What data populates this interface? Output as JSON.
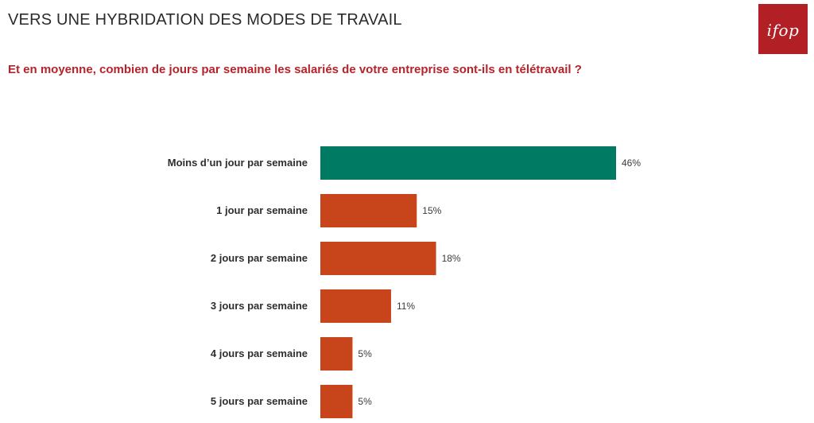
{
  "header": {
    "title": "VERS UNE HYBRIDATION DES MODES DE TRAVAIL",
    "question": "Et en moyenne, combien de jours par semaine les salariés de votre entreprise sont-ils en télétravail ?"
  },
  "logo": {
    "text": "ifop",
    "color": "#b22026"
  },
  "chart_data": {
    "type": "bar",
    "orientation": "horizontal",
    "categories": [
      "Moins d’un jour par semaine",
      "1 jour par semaine",
      "2 jours par semaine",
      "3 jours par semaine",
      "4 jours par semaine",
      "5 jours par semaine"
    ],
    "values": [
      46,
      15,
      18,
      11,
      5,
      5
    ],
    "value_labels": [
      "46%",
      "15%",
      "18%",
      "11%",
      "5%",
      "5%"
    ],
    "unit": "%",
    "colors": [
      "#007a63",
      "#c8441a",
      "#c8441a",
      "#c8441a",
      "#c8441a",
      "#c8441a"
    ],
    "xlim": [
      0,
      46
    ],
    "grid": false,
    "legend": "none"
  }
}
